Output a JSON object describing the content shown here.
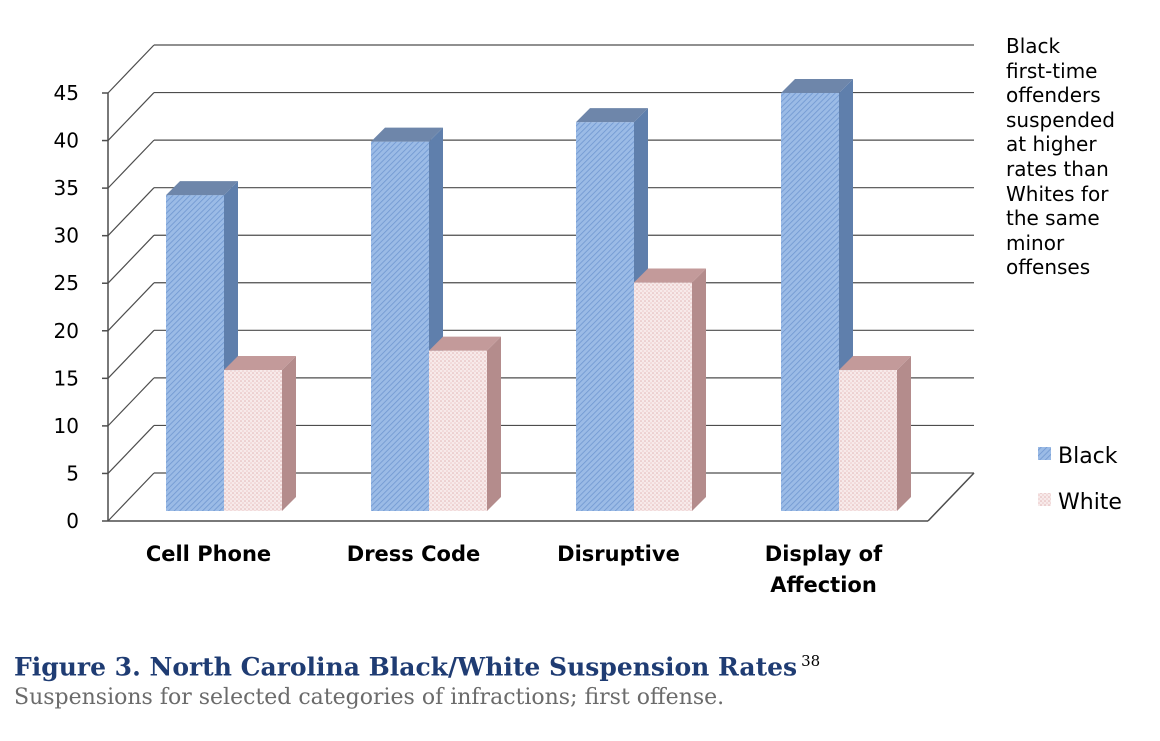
{
  "chart_data": {
    "type": "bar",
    "categories": [
      [
        "Cell Phone"
      ],
      [
        "Dress Code"
      ],
      [
        "Disruptive"
      ],
      [
        "Display of",
        "Affection"
      ]
    ],
    "series": [
      {
        "name": "Black",
        "values": [
          32.5,
          38,
          40,
          43
        ],
        "color": "#8fb2e0"
      },
      {
        "name": "White",
        "values": [
          14.5,
          16.5,
          23.5,
          14.5
        ],
        "color": "#f3dede"
      }
    ],
    "ylim": [
      0,
      45
    ],
    "yticks": [
      "0",
      "5",
      "10",
      "15",
      "20",
      "25",
      "30",
      "35",
      "40",
      "45"
    ],
    "grid": true,
    "legend_position": "right",
    "chart_style": "3d-clustered-column"
  },
  "annotation": [
    "Black",
    "first-time",
    "offenders",
    "suspended",
    "at higher",
    "rates than",
    "Whites for",
    "the same",
    "minor",
    "offenses"
  ],
  "caption": {
    "title": "Figure 3. North Carolina Black/White Suspension Rates",
    "ref": "38",
    "subtitle": "Suspensions for selected categories of infractions; first offense."
  }
}
